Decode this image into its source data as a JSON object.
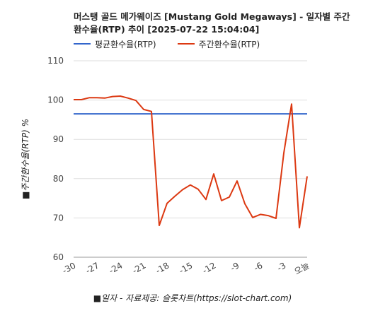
{
  "chart_data": {
    "type": "line",
    "title_line1": "머스탱 골드 메가웨이즈 [Mustang Gold Megaways] - 일자별 주간",
    "title_line2": "환수율(RTP) 추이 [2025-07-22 15:04:04]",
    "xlabel": "■일자 - 자료제공: 슬롯차트(https://slot-chart.com)",
    "ylabel": "■주간환수율(RTP) %",
    "ylim": [
      60,
      110
    ],
    "yticks": [
      "60",
      "70",
      "80",
      "90",
      "100",
      "110"
    ],
    "xticks": [
      "-30",
      "-27",
      "-24",
      "-21",
      "-18",
      "-15",
      "-12",
      "-9",
      "-6",
      "-3",
      "오늘"
    ],
    "grid": true,
    "legend_position": "top-left",
    "x": [
      -30,
      -29,
      -28,
      -27,
      -26,
      -25,
      -24,
      -23,
      -22,
      -21,
      -20,
      -19,
      -18,
      -17,
      -16,
      -15,
      -14,
      -13,
      -12,
      -11,
      -10,
      -9,
      -8,
      -7,
      -6,
      -5,
      -4,
      -3,
      -2,
      -1,
      0
    ],
    "series": [
      {
        "name": "평균환수율(RTP)",
        "color": "#3366cc",
        "values": [
          96.5,
          96.5,
          96.5,
          96.5,
          96.5,
          96.5,
          96.5,
          96.5,
          96.5,
          96.5,
          96.5,
          96.5,
          96.5,
          96.5,
          96.5,
          96.5,
          96.5,
          96.5,
          96.5,
          96.5,
          96.5,
          96.5,
          96.5,
          96.5,
          96.5,
          96.5,
          96.5,
          96.5,
          96.5,
          96.5,
          96.5
        ]
      },
      {
        "name": "주간환수율(RTP)",
        "color": "#dc3912",
        "values": [
          100.1,
          100.1,
          100.6,
          100.6,
          100.5,
          100.9,
          101.0,
          100.5,
          99.9,
          97.6,
          97.1,
          68.1,
          73.7,
          75.5,
          77.2,
          78.4,
          77.3,
          74.7,
          81.2,
          74.4,
          75.3,
          79.4,
          73.6,
          70.1,
          70.9,
          70.6,
          69.9,
          86.5,
          99.0,
          67.5,
          80.6
        ]
      }
    ]
  }
}
